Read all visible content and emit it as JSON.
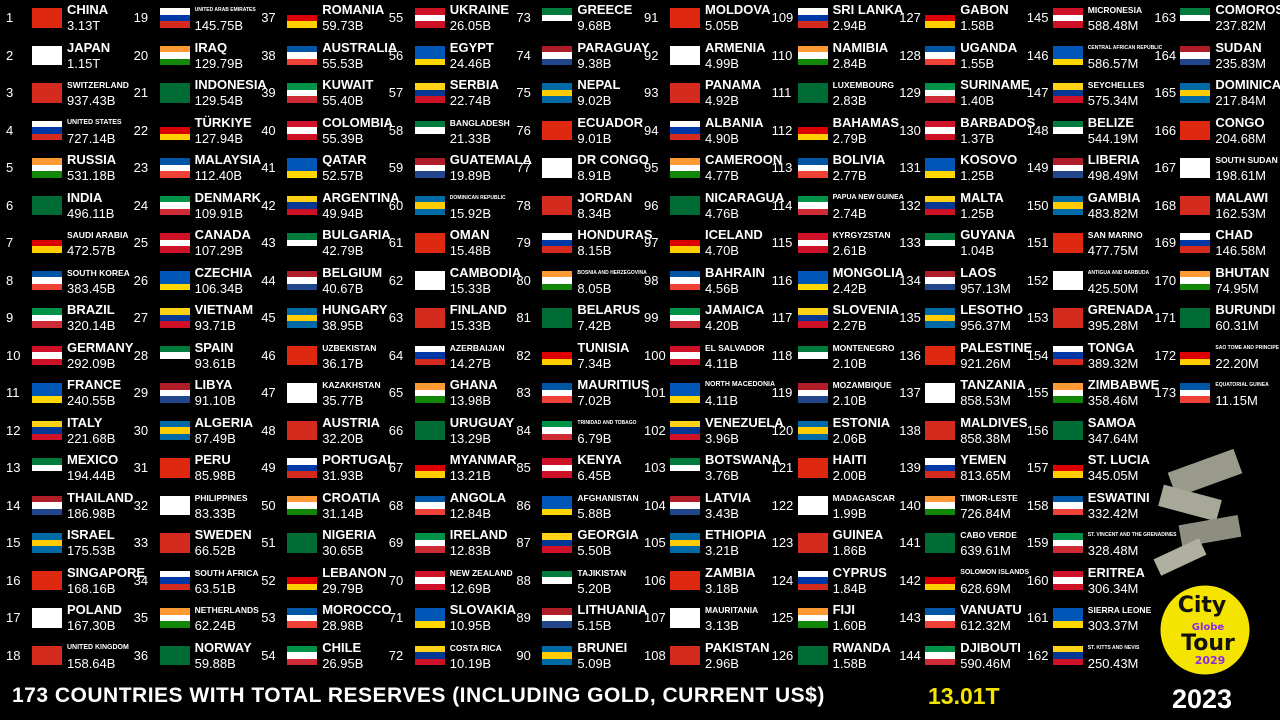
{
  "entries": [
    {
      "rank": 1,
      "name": "CHINA",
      "value": "3.13T"
    },
    {
      "rank": 2,
      "name": "JAPAN",
      "value": "1.15T"
    },
    {
      "rank": 3,
      "name": "SWITZERLAND",
      "value": "937.43B"
    },
    {
      "rank": 4,
      "name": "UNITED STATES",
      "value": "727.14B"
    },
    {
      "rank": 5,
      "name": "RUSSIA",
      "value": "531.18B"
    },
    {
      "rank": 6,
      "name": "INDIA",
      "value": "496.11B"
    },
    {
      "rank": 7,
      "name": "SAUDI ARABIA",
      "value": "472.57B"
    },
    {
      "rank": 8,
      "name": "SOUTH KOREA",
      "value": "383.45B"
    },
    {
      "rank": 9,
      "name": "BRAZIL",
      "value": "320.14B"
    },
    {
      "rank": 10,
      "name": "GERMANY",
      "value": "292.09B"
    },
    {
      "rank": 11,
      "name": "FRANCE",
      "value": "240.55B"
    },
    {
      "rank": 12,
      "name": "ITALY",
      "value": "221.68B"
    },
    {
      "rank": 13,
      "name": "MEXICO",
      "value": "194.44B"
    },
    {
      "rank": 14,
      "name": "THAILAND",
      "value": "186.98B"
    },
    {
      "rank": 15,
      "name": "ISRAEL",
      "value": "175.53B"
    },
    {
      "rank": 16,
      "name": "SINGAPORE",
      "value": "168.16B"
    },
    {
      "rank": 17,
      "name": "POLAND",
      "value": "167.30B"
    },
    {
      "rank": 18,
      "name": "UNITED KINGDOM",
      "value": "158.64B"
    },
    {
      "rank": 19,
      "name": "UNITED ARAB EMIRATES",
      "value": "145.75B"
    },
    {
      "rank": 20,
      "name": "IRAQ",
      "value": "129.79B"
    },
    {
      "rank": 21,
      "name": "INDONESIA",
      "value": "129.54B"
    },
    {
      "rank": 22,
      "name": "TÜRKIYE",
      "value": "127.94B"
    },
    {
      "rank": 23,
      "name": "MALAYSIA",
      "value": "112.40B"
    },
    {
      "rank": 24,
      "name": "DENMARK",
      "value": "109.91B"
    },
    {
      "rank": 25,
      "name": "CANADA",
      "value": "107.29B"
    },
    {
      "rank": 26,
      "name": "CZECHIA",
      "value": "106.34B"
    },
    {
      "rank": 27,
      "name": "VIETNAM",
      "value": "93.71B"
    },
    {
      "rank": 28,
      "name": "SPAIN",
      "value": "93.61B"
    },
    {
      "rank": 29,
      "name": "LIBYA",
      "value": "91.10B"
    },
    {
      "rank": 30,
      "name": "ALGERIA",
      "value": "87.49B"
    },
    {
      "rank": 31,
      "name": "PERU",
      "value": "85.98B"
    },
    {
      "rank": 32,
      "name": "PHILIPPINES",
      "value": "83.33B"
    },
    {
      "rank": 33,
      "name": "SWEDEN",
      "value": "66.52B"
    },
    {
      "rank": 34,
      "name": "SOUTH AFRICA",
      "value": "63.51B"
    },
    {
      "rank": 35,
      "name": "NETHERLANDS",
      "value": "62.24B"
    },
    {
      "rank": 36,
      "name": "NORWAY",
      "value": "59.88B"
    },
    {
      "rank": 37,
      "name": "ROMANIA",
      "value": "59.73B"
    },
    {
      "rank": 38,
      "name": "AUSTRALIA",
      "value": "55.53B"
    },
    {
      "rank": 39,
      "name": "KUWAIT",
      "value": "55.40B"
    },
    {
      "rank": 40,
      "name": "COLOMBIA",
      "value": "55.39B"
    },
    {
      "rank": 41,
      "name": "QATAR",
      "value": "52.57B"
    },
    {
      "rank": 42,
      "name": "ARGENTINA",
      "value": "49.94B"
    },
    {
      "rank": 43,
      "name": "BULGARIA",
      "value": "42.79B"
    },
    {
      "rank": 44,
      "name": "BELGIUM",
      "value": "40.67B"
    },
    {
      "rank": 45,
      "name": "HUNGARY",
      "value": "38.95B"
    },
    {
      "rank": 46,
      "name": "UZBEKISTAN",
      "value": "36.17B"
    },
    {
      "rank": 47,
      "name": "KAZAKHSTAN",
      "value": "35.77B"
    },
    {
      "rank": 48,
      "name": "AUSTRIA",
      "value": "32.20B"
    },
    {
      "rank": 49,
      "name": "PORTUGAL",
      "value": "31.93B"
    },
    {
      "rank": 50,
      "name": "CROATIA",
      "value": "31.14B"
    },
    {
      "rank": 51,
      "name": "NIGERIA",
      "value": "30.65B"
    },
    {
      "rank": 52,
      "name": "LEBANON",
      "value": "29.79B"
    },
    {
      "rank": 53,
      "name": "MOROCCO",
      "value": "28.98B"
    },
    {
      "rank": 54,
      "name": "CHILE",
      "value": "26.95B"
    },
    {
      "rank": 55,
      "name": "UKRAINE",
      "value": "26.05B"
    },
    {
      "rank": 56,
      "name": "EGYPT",
      "value": "24.46B"
    },
    {
      "rank": 57,
      "name": "SERBIA",
      "value": "22.74B"
    },
    {
      "rank": 58,
      "name": "BANGLADESH",
      "value": "21.33B"
    },
    {
      "rank": 59,
      "name": "GUATEMALA",
      "value": "19.89B"
    },
    {
      "rank": 60,
      "name": "DOMINICAN REPUBLIC",
      "value": "15.92B"
    },
    {
      "rank": 61,
      "name": "OMAN",
      "value": "15.48B"
    },
    {
      "rank": 62,
      "name": "CAMBODIA",
      "value": "15.33B"
    },
    {
      "rank": 63,
      "name": "FINLAND",
      "value": "15.33B"
    },
    {
      "rank": 64,
      "name": "AZERBAIJAN",
      "value": "14.27B"
    },
    {
      "rank": 65,
      "name": "GHANA",
      "value": "13.98B"
    },
    {
      "rank": 66,
      "name": "URUGUAY",
      "value": "13.29B"
    },
    {
      "rank": 67,
      "name": "MYANMAR",
      "value": "13.21B"
    },
    {
      "rank": 68,
      "name": "ANGOLA",
      "value": "12.84B"
    },
    {
      "rank": 69,
      "name": "IRELAND",
      "value": "12.83B"
    },
    {
      "rank": 70,
      "name": "NEW ZEALAND",
      "value": "12.69B"
    },
    {
      "rank": 71,
      "name": "SLOVAKIA",
      "value": "10.95B"
    },
    {
      "rank": 72,
      "name": "COSTA RICA",
      "value": "10.19B"
    },
    {
      "rank": 73,
      "name": "GREECE",
      "value": "9.68B"
    },
    {
      "rank": 74,
      "name": "PARAGUAY",
      "value": "9.38B"
    },
    {
      "rank": 75,
      "name": "NEPAL",
      "value": "9.02B"
    },
    {
      "rank": 76,
      "name": "ECUADOR",
      "value": "9.01B"
    },
    {
      "rank": 77,
      "name": "DR CONGO",
      "value": "8.91B"
    },
    {
      "rank": 78,
      "name": "JORDAN",
      "value": "8.34B"
    },
    {
      "rank": 79,
      "name": "HONDURAS",
      "value": "8.15B"
    },
    {
      "rank": 80,
      "name": "BOSNIA AND HERZEGOVINA",
      "value": "8.05B"
    },
    {
      "rank": 81,
      "name": "BELARUS",
      "value": "7.42B"
    },
    {
      "rank": 82,
      "name": "TUNISIA",
      "value": "7.34B"
    },
    {
      "rank": 83,
      "name": "MAURITIUS",
      "value": "7.02B"
    },
    {
      "rank": 84,
      "name": "TRINIDAD AND TOBAGO",
      "value": "6.79B"
    },
    {
      "rank": 85,
      "name": "KENYA",
      "value": "6.45B"
    },
    {
      "rank": 86,
      "name": "AFGHANISTAN",
      "value": "5.88B"
    },
    {
      "rank": 87,
      "name": "GEORGIA",
      "value": "5.50B"
    },
    {
      "rank": 88,
      "name": "TAJIKISTAN",
      "value": "5.20B"
    },
    {
      "rank": 89,
      "name": "LITHUANIA",
      "value": "5.15B"
    },
    {
      "rank": 90,
      "name": "BRUNEI",
      "value": "5.09B"
    },
    {
      "rank": 91,
      "name": "MOLDOVA",
      "value": "5.05B"
    },
    {
      "rank": 92,
      "name": "ARMENIA",
      "value": "4.99B"
    },
    {
      "rank": 93,
      "name": "PANAMA",
      "value": "4.92B"
    },
    {
      "rank": 94,
      "name": "ALBANIA",
      "value": "4.90B"
    },
    {
      "rank": 95,
      "name": "CAMEROON",
      "value": "4.77B"
    },
    {
      "rank": 96,
      "name": "NICARAGUA",
      "value": "4.76B"
    },
    {
      "rank": 97,
      "name": "ICELAND",
      "value": "4.70B"
    },
    {
      "rank": 98,
      "name": "BAHRAIN",
      "value": "4.56B"
    },
    {
      "rank": 99,
      "name": "JAMAICA",
      "value": "4.20B"
    },
    {
      "rank": 100,
      "name": "EL SALVADOR",
      "value": "4.11B"
    },
    {
      "rank": 101,
      "name": "NORTH MACEDONIA",
      "value": "4.11B"
    },
    {
      "rank": 102,
      "name": "VENEZUELA",
      "value": "3.96B"
    },
    {
      "rank": 103,
      "name": "BOTSWANA",
      "value": "3.76B"
    },
    {
      "rank": 104,
      "name": "LATVIA",
      "value": "3.43B"
    },
    {
      "rank": 105,
      "name": "ETHIOPIA",
      "value": "3.21B"
    },
    {
      "rank": 106,
      "name": "ZAMBIA",
      "value": "3.18B"
    },
    {
      "rank": 107,
      "name": "MAURITANIA",
      "value": "3.13B"
    },
    {
      "rank": 108,
      "name": "PAKISTAN",
      "value": "2.96B"
    },
    {
      "rank": 109,
      "name": "SRI LANKA",
      "value": "2.94B"
    },
    {
      "rank": 110,
      "name": "NAMIBIA",
      "value": "2.84B"
    },
    {
      "rank": 111,
      "name": "LUXEMBOURG",
      "value": "2.83B"
    },
    {
      "rank": 112,
      "name": "BAHAMAS",
      "value": "2.79B"
    },
    {
      "rank": 113,
      "name": "BOLIVIA",
      "value": "2.77B"
    },
    {
      "rank": 114,
      "name": "PAPUA NEW GUINEA",
      "value": "2.74B"
    },
    {
      "rank": 115,
      "name": "KYRGYZSTAN",
      "value": "2.61B"
    },
    {
      "rank": 116,
      "name": "MONGOLIA",
      "value": "2.42B"
    },
    {
      "rank": 117,
      "name": "SLOVENIA",
      "value": "2.27B"
    },
    {
      "rank": 118,
      "name": "MONTENEGRO",
      "value": "2.10B"
    },
    {
      "rank": 119,
      "name": "MOZAMBIQUE",
      "value": "2.10B"
    },
    {
      "rank": 120,
      "name": "ESTONIA",
      "value": "2.06B"
    },
    {
      "rank": 121,
      "name": "HAITI",
      "value": "2.00B"
    },
    {
      "rank": 122,
      "name": "MADAGASCAR",
      "value": "1.99B"
    },
    {
      "rank": 123,
      "name": "GUINEA",
      "value": "1.86B"
    },
    {
      "rank": 124,
      "name": "CYPRUS",
      "value": "1.84B"
    },
    {
      "rank": 125,
      "name": "FIJI",
      "value": "1.60B"
    },
    {
      "rank": 126,
      "name": "RWANDA",
      "value": "1.58B"
    },
    {
      "rank": 127,
      "name": "GABON",
      "value": "1.58B"
    },
    {
      "rank": 128,
      "name": "UGANDA",
      "value": "1.55B"
    },
    {
      "rank": 129,
      "name": "SURINAME",
      "value": "1.40B"
    },
    {
      "rank": 130,
      "name": "BARBADOS",
      "value": "1.37B"
    },
    {
      "rank": 131,
      "name": "KOSOVO",
      "value": "1.25B"
    },
    {
      "rank": 132,
      "name": "MALTA",
      "value": "1.25B"
    },
    {
      "rank": 133,
      "name": "GUYANA",
      "value": "1.04B"
    },
    {
      "rank": 134,
      "name": "LAOS",
      "value": "957.13M"
    },
    {
      "rank": 135,
      "name": "LESOTHO",
      "value": "956.37M"
    },
    {
      "rank": 136,
      "name": "PALESTINE",
      "value": "921.26M"
    },
    {
      "rank": 137,
      "name": "TANZANIA",
      "value": "858.53M"
    },
    {
      "rank": 138,
      "name": "MALDIVES",
      "value": "858.38M"
    },
    {
      "rank": 139,
      "name": "YEMEN",
      "value": "813.65M"
    },
    {
      "rank": 140,
      "name": "TIMOR-LESTE",
      "value": "726.84M"
    },
    {
      "rank": 141,
      "name": "CABO VERDE",
      "value": "639.61M"
    },
    {
      "rank": 142,
      "name": "SOLOMON ISLANDS",
      "value": "628.69M"
    },
    {
      "rank": 143,
      "name": "VANUATU",
      "value": "612.32M"
    },
    {
      "rank": 144,
      "name": "DJIBOUTI",
      "value": "590.46M"
    },
    {
      "rank": 145,
      "name": "MICRONESIA",
      "value": "588.48M"
    },
    {
      "rank": 146,
      "name": "CENTRAL AFRICAN REPUBLIC",
      "value": "586.57M"
    },
    {
      "rank": 147,
      "name": "SEYCHELLES",
      "value": "575.34M"
    },
    {
      "rank": 148,
      "name": "BELIZE",
      "value": "544.19M"
    },
    {
      "rank": 149,
      "name": "LIBERIA",
      "value": "498.49M"
    },
    {
      "rank": 150,
      "name": "GAMBIA",
      "value": "483.82M"
    },
    {
      "rank": 151,
      "name": "SAN MARINO",
      "value": "477.75M"
    },
    {
      "rank": 152,
      "name": "ANTIGUA AND BARBUDA",
      "value": "425.50M"
    },
    {
      "rank": 153,
      "name": "GRENADA",
      "value": "395.28M"
    },
    {
      "rank": 154,
      "name": "TONGA",
      "value": "389.32M"
    },
    {
      "rank": 155,
      "name": "ZIMBABWE",
      "value": "358.46M"
    },
    {
      "rank": 156,
      "name": "SAMOA",
      "value": "347.64M"
    },
    {
      "rank": 157,
      "name": "ST. LUCIA",
      "value": "345.05M"
    },
    {
      "rank": 158,
      "name": "ESWATINI",
      "value": "332.42M"
    },
    {
      "rank": 159,
      "name": "ST. VINCENT AND THE GRENADINES",
      "value": "328.48M"
    },
    {
      "rank": 160,
      "name": "ERITREA",
      "value": "306.34M"
    },
    {
      "rank": 161,
      "name": "SIERRA LEONE",
      "value": "303.37M"
    },
    {
      "rank": 162,
      "name": "ST. KITTS AND NEVIS",
      "value": "250.43M"
    },
    {
      "rank": 163,
      "name": "COMOROS",
      "value": "237.82M"
    },
    {
      "rank": 164,
      "name": "SUDAN",
      "value": "235.83M"
    },
    {
      "rank": 165,
      "name": "DOMINICA",
      "value": "217.84M"
    },
    {
      "rank": 166,
      "name": "CONGO",
      "value": "204.68M"
    },
    {
      "rank": 167,
      "name": "SOUTH SUDAN",
      "value": "198.61M"
    },
    {
      "rank": 168,
      "name": "MALAWI",
      "value": "162.53M"
    },
    {
      "rank": 169,
      "name": "CHAD",
      "value": "146.58M"
    },
    {
      "rank": 170,
      "name": "BHUTAN",
      "value": "74.95M"
    },
    {
      "rank": 171,
      "name": "BURUNDI",
      "value": "60.31M"
    },
    {
      "rank": 172,
      "name": "SAO TOME AND PRINCIPE",
      "value": "22.20M"
    },
    {
      "rank": 173,
      "name": "EQUATORIAL GUINEA",
      "value": "11.15M"
    }
  ],
  "footer": {
    "title": "173 COUNTRIES WITH TOTAL RESERVES (INCLUDING GOLD, CURRENT US$)",
    "total": "13.01T",
    "year": "2023"
  },
  "logo": {
    "line1": "City",
    "line2": "Globe",
    "line3": "Tour",
    "line4": "2029"
  }
}
